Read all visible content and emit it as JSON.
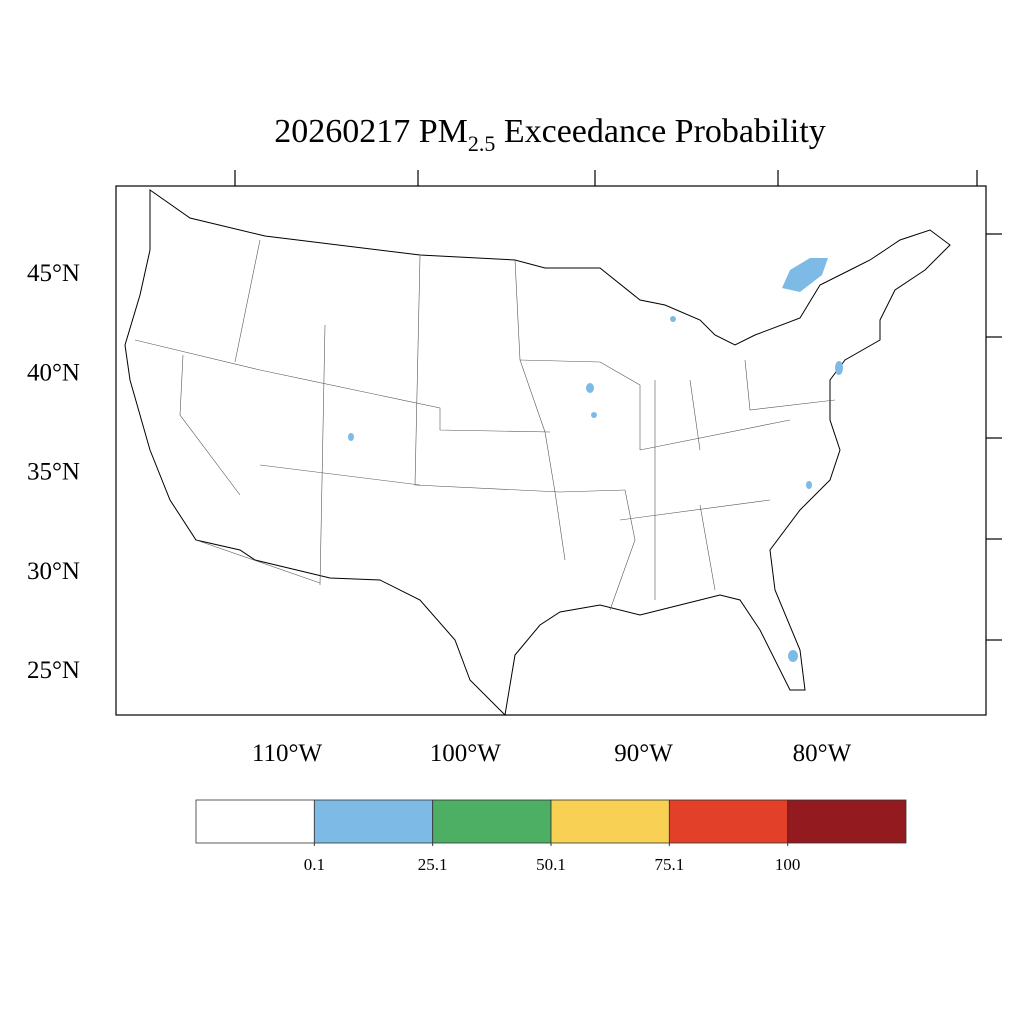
{
  "title": {
    "date": "20260217",
    "pollutant": "PM",
    "subscript": "2.5",
    "rest": "Exceedance Probability"
  },
  "map": {
    "lat_labels": [
      "45°N",
      "40°N",
      "35°N",
      "30°N",
      "25°N"
    ],
    "lon_labels": [
      "110°W",
      "100°W",
      "90°W",
      "80°W"
    ]
  },
  "colorbar": {
    "colors": [
      "#ffffff",
      "#7dbbe6",
      "#4caf63",
      "#f8d054",
      "#e3402a",
      "#931a1e"
    ],
    "labels": [
      0.1,
      25.1,
      50.1,
      75.1,
      100
    ]
  }
}
